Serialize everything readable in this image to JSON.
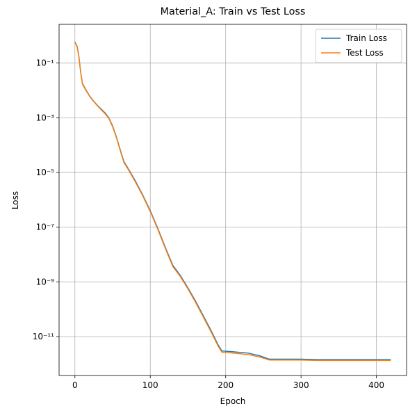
{
  "chart_data": {
    "type": "line",
    "title": "Material_A: Train vs Test Loss",
    "xlabel": "Epoch",
    "ylabel": "Loss",
    "x": [
      0,
      3,
      5,
      8,
      10,
      15,
      20,
      25,
      30,
      40,
      45,
      50,
      55,
      60,
      65,
      70,
      80,
      90,
      100,
      110,
      120,
      130,
      140,
      150,
      160,
      170,
      180,
      190,
      195,
      210,
      230,
      245,
      258,
      300,
      320,
      419
    ],
    "series": [
      {
        "name": "Train Loss",
        "color": "#1f77b4",
        "values": [
          0.6,
          0.4,
          0.2,
          0.04,
          0.018,
          0.01,
          0.006,
          0.004,
          0.0028,
          0.0015,
          0.001,
          0.0005,
          0.0002,
          7e-05,
          2.5e-05,
          1.5e-05,
          5e-06,
          1.5e-06,
          4e-07,
          9e-08,
          1.8e-08,
          4e-09,
          1.7e-09,
          6e-10,
          2e-10,
          6e-11,
          1.8e-11,
          5e-12,
          3e-12,
          2.8e-12,
          2.5e-12,
          2e-12,
          1.5e-12,
          1.5e-12,
          1.45e-12,
          1.45e-12
        ]
      },
      {
        "name": "Test Loss",
        "color": "#ff7f0e",
        "values": [
          0.58,
          0.38,
          0.19,
          0.038,
          0.017,
          0.0095,
          0.0058,
          0.0039,
          0.0027,
          0.0014,
          0.00095,
          0.00047,
          0.00019,
          6.5e-05,
          2.3e-05,
          1.4e-05,
          4.6e-06,
          1.4e-06,
          3.7e-07,
          8.3e-08,
          1.65e-08,
          3.6e-09,
          1.55e-09,
          5.5e-10,
          1.8e-10,
          5.4e-11,
          1.6e-11,
          4.5e-12,
          2.7e-12,
          2.5e-12,
          2.2e-12,
          1.8e-12,
          1.4e-12,
          1.4e-12,
          1.35e-12,
          1.35e-12
        ]
      }
    ],
    "xlim": [
      -21,
      440
    ],
    "xticks": [
      0,
      100,
      200,
      300,
      400
    ],
    "ylim": [
      3.8e-13,
      2.6
    ],
    "log_y": true,
    "yticks": [
      {
        "value": 1e-11,
        "label": "10⁻¹¹"
      },
      {
        "value": 1e-09,
        "label": "10⁻⁹"
      },
      {
        "value": 1e-07,
        "label": "10⁻⁷"
      },
      {
        "value": 1e-05,
        "label": "10⁻⁵"
      },
      {
        "value": 0.001,
        "label": "10⁻³"
      },
      {
        "value": 0.1,
        "label": "10⁻¹"
      }
    ],
    "grid": true,
    "legend": "upper right"
  }
}
